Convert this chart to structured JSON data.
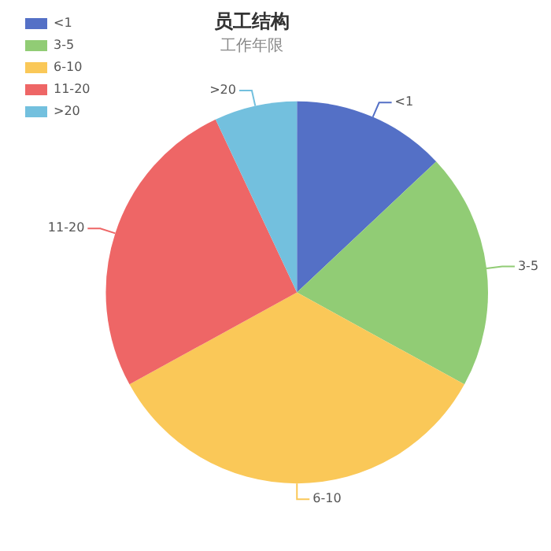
{
  "chart_data": {
    "type": "pie",
    "title": "员工结构",
    "subtitle": "工作年限",
    "categories": [
      "<1",
      "3-5",
      "6-10",
      "11-20",
      ">20"
    ],
    "values": [
      13,
      20,
      34,
      26,
      7
    ],
    "colors": [
      "#5470c6",
      "#91cc75",
      "#fac858",
      "#ee6666",
      "#73c0de"
    ],
    "legend": "top left"
  }
}
